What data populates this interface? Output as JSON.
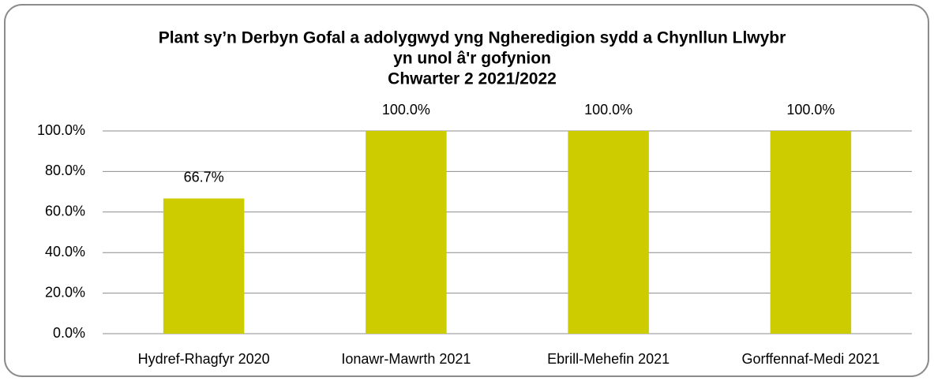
{
  "chart_data": {
    "type": "bar",
    "title": [
      "Plant sy’n Derbyn Gofal a adolygwyd yng Ngheredigion sydd a Chynllun Llwybr",
      "yn unol â'r gofynion",
      "Chwarter 2  2021/2022"
    ],
    "categories": [
      "Hydref-Rhagfyr 2020",
      "Ionawr-Mawrth 2021",
      "Ebrill-Mehefin 2021",
      "Gorffennaf-Medi 2021"
    ],
    "values": [
      66.7,
      100,
      100,
      100
    ],
    "value_labels": [
      "66.7%",
      "100.0%",
      "100.0%",
      "100.0%"
    ],
    "color": "#cccc00",
    "ylim": [
      0,
      100
    ],
    "yticks": [
      {
        "value": 0,
        "label": "0.0%"
      },
      {
        "value": 20,
        "label": "20.0%"
      },
      {
        "value": 40,
        "label": "40.0%"
      },
      {
        "value": 60,
        "label": "60.0%"
      },
      {
        "value": 80,
        "label": "80.0%"
      },
      {
        "value": 100,
        "label": "100.0%"
      }
    ],
    "grid": true
  }
}
